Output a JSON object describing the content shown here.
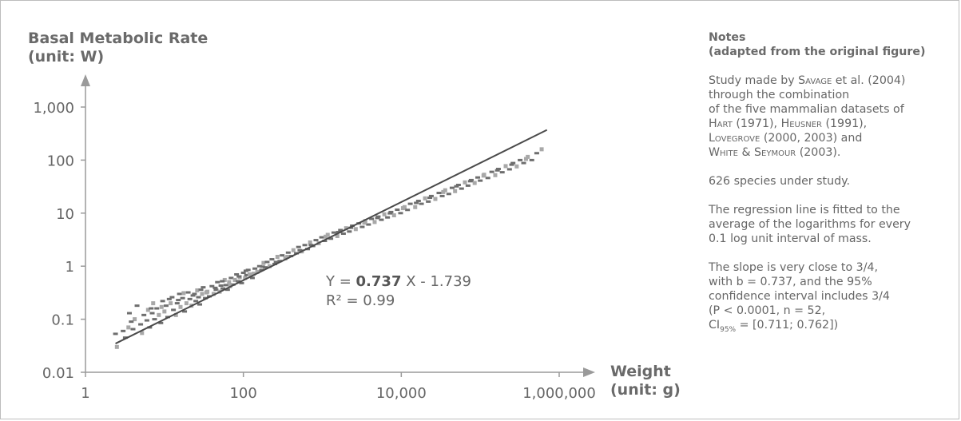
{
  "chart_data": {
    "type": "scatter",
    "title": "",
    "ylabel_line1": "Basal Metabolic Rate",
    "ylabel_line2": "(unit: W)",
    "xlabel_line1": "Weight",
    "xlabel_line2": "(unit: g)",
    "x_scale": "log",
    "y_scale": "log",
    "xlim": [
      1,
      1000000
    ],
    "ylim": [
      0.01,
      1000
    ],
    "x_ticks": [
      {
        "value": 1,
        "label": "1"
      },
      {
        "value": 100,
        "label": "100"
      },
      {
        "value": 10000,
        "label": "10,000"
      },
      {
        "value": 1000000,
        "label": "1,000,000"
      }
    ],
    "y_ticks": [
      {
        "value": 0.01,
        "label": "0.01"
      },
      {
        "value": 0.1,
        "label": "0.1"
      },
      {
        "value": 1,
        "label": "1"
      },
      {
        "value": 10,
        "label": "10"
      },
      {
        "value": 100,
        "label": "100"
      },
      {
        "value": 1000,
        "label": "1,000"
      }
    ],
    "grid": false,
    "regression": {
      "slope": 0.737,
      "intercept": -1.739,
      "x_range": [
        2.4,
        700000
      ],
      "equation_prefix": "Y = ",
      "equation_slope": "0.737",
      "equation_suffix": " X - 1.739",
      "r2_label": "R² = 0.99"
    },
    "points": [
      [
        2.4,
        0.053
      ],
      [
        2.5,
        0.03
      ],
      [
        3,
        0.06
      ],
      [
        3.2,
        0.045
      ],
      [
        3.5,
        0.07
      ],
      [
        3.6,
        0.13
      ],
      [
        4,
        0.065
      ],
      [
        4.2,
        0.1
      ],
      [
        4.5,
        0.18
      ],
      [
        5,
        0.08
      ],
      [
        5.2,
        0.055
      ],
      [
        5.5,
        0.12
      ],
      [
        6,
        0.095
      ],
      [
        6.2,
        0.15
      ],
      [
        6.5,
        0.07
      ],
      [
        7,
        0.13
      ],
      [
        7.2,
        0.2
      ],
      [
        7.5,
        0.1
      ],
      [
        8,
        0.16
      ],
      [
        8.5,
        0.12
      ],
      [
        9,
        0.085
      ],
      [
        9.5,
        0.22
      ],
      [
        10,
        0.14
      ],
      [
        10.5,
        0.18
      ],
      [
        11,
        0.11
      ],
      [
        12,
        0.2
      ],
      [
        12.5,
        0.26
      ],
      [
        13,
        0.15
      ],
      [
        14,
        0.12
      ],
      [
        15,
        0.23
      ],
      [
        15.5,
        0.3
      ],
      [
        16,
        0.17
      ],
      [
        17,
        0.25
      ],
      [
        18,
        0.14
      ],
      [
        19,
        0.2
      ],
      [
        20,
        0.32
      ],
      [
        21,
        0.24
      ],
      [
        22,
        0.18
      ],
      [
        23,
        0.28
      ],
      [
        25,
        0.22
      ],
      [
        26,
        0.35
      ],
      [
        27,
        0.26
      ],
      [
        28,
        0.19
      ],
      [
        30,
        0.3
      ],
      [
        31,
        0.4
      ],
      [
        33,
        0.25
      ],
      [
        35,
        0.33
      ],
      [
        37,
        0.27
      ],
      [
        40,
        0.42
      ],
      [
        42,
        0.3
      ],
      [
        45,
        0.36
      ],
      [
        47,
        0.5
      ],
      [
        50,
        0.33
      ],
      [
        52,
        0.43
      ],
      [
        55,
        0.38
      ],
      [
        58,
        0.55
      ],
      [
        60,
        0.44
      ],
      [
        63,
        0.36
      ],
      [
        66,
        0.5
      ],
      [
        70,
        0.6
      ],
      [
        74,
        0.45
      ],
      [
        78,
        0.55
      ],
      [
        82,
        0.7
      ],
      [
        86,
        0.52
      ],
      [
        90,
        0.62
      ],
      [
        95,
        0.48
      ],
      [
        100,
        0.75
      ],
      [
        105,
        0.6
      ],
      [
        110,
        0.68
      ],
      [
        115,
        0.85
      ],
      [
        120,
        0.7
      ],
      [
        130,
        0.6
      ],
      [
        140,
        0.9
      ],
      [
        150,
        0.78
      ],
      [
        160,
        1.0
      ],
      [
        170,
        0.85
      ],
      [
        180,
        1.15
      ],
      [
        190,
        0.95
      ],
      [
        200,
        1.2
      ],
      [
        215,
        1.0
      ],
      [
        230,
        1.35
      ],
      [
        250,
        1.1
      ],
      [
        270,
        1.5
      ],
      [
        290,
        1.25
      ],
      [
        310,
        1.6
      ],
      [
        340,
        1.4
      ],
      [
        370,
        1.8
      ],
      [
        400,
        1.55
      ],
      [
        430,
        2.0
      ],
      [
        470,
        1.75
      ],
      [
        500,
        2.3
      ],
      [
        550,
        1.9
      ],
      [
        600,
        2.5
      ],
      [
        650,
        2.1
      ],
      [
        700,
        2.8
      ],
      [
        760,
        2.4
      ],
      [
        830,
        3.1
      ],
      [
        900,
        2.7
      ],
      [
        980,
        3.5
      ],
      [
        1070,
        3.0
      ],
      [
        1170,
        3.9
      ],
      [
        1280,
        3.3
      ],
      [
        1400,
        4.3
      ],
      [
        1550,
        3.7
      ],
      [
        1700,
        4.8
      ],
      [
        1850,
        4.1
      ],
      [
        2000,
        5.2
      ],
      [
        2200,
        4.5
      ],
      [
        2400,
        5.8
      ],
      [
        2650,
        5.0
      ],
      [
        2900,
        6.4
      ],
      [
        3200,
        5.5
      ],
      [
        3500,
        7.1
      ],
      [
        3850,
        6.1
      ],
      [
        4200,
        7.8
      ],
      [
        4600,
        6.8
      ],
      [
        5100,
        8.6
      ],
      [
        5600,
        7.5
      ],
      [
        6100,
        9.5
      ],
      [
        6700,
        8.3
      ],
      [
        7400,
        10.5
      ],
      [
        8100,
        9.1
      ],
      [
        8900,
        11.6
      ],
      [
        9800,
        10
      ],
      [
        11000,
        13
      ],
      [
        12000,
        11.5
      ],
      [
        13000,
        15
      ],
      [
        15000,
        13
      ],
      [
        16500,
        17
      ],
      [
        18000,
        15
      ],
      [
        20000,
        19
      ],
      [
        22000,
        16.5
      ],
      [
        24000,
        21
      ],
      [
        27000,
        18.5
      ],
      [
        30000,
        24
      ],
      [
        33000,
        21
      ],
      [
        36000,
        27
      ],
      [
        40000,
        23
      ],
      [
        44000,
        30
      ],
      [
        48000,
        26
      ],
      [
        53000,
        34
      ],
      [
        58000,
        29
      ],
      [
        64000,
        38
      ],
      [
        70000,
        33
      ],
      [
        77000,
        42
      ],
      [
        85000,
        37
      ],
      [
        93000,
        47
      ],
      [
        100000,
        41
      ],
      [
        112000,
        53
      ],
      [
        125000,
        46
      ],
      [
        140000,
        60
      ],
      [
        155000,
        52
      ],
      [
        170000,
        68
      ],
      [
        190000,
        59
      ],
      [
        210000,
        77
      ],
      [
        235000,
        67
      ],
      [
        260000,
        88
      ],
      [
        290000,
        76
      ],
      [
        320000,
        100
      ],
      [
        355000,
        88
      ],
      [
        400000,
        115
      ],
      [
        450000,
        100
      ],
      [
        520000,
        135
      ],
      [
        600000,
        160
      ],
      [
        3.8,
        0.09
      ],
      [
        6.8,
        0.16
      ],
      [
        9.2,
        0.17
      ],
      [
        11.5,
        0.24
      ],
      [
        14.5,
        0.2
      ],
      [
        17.5,
        0.31
      ],
      [
        24,
        0.3
      ],
      [
        29,
        0.36
      ],
      [
        34,
        0.32
      ],
      [
        44,
        0.39
      ],
      [
        54,
        0.52
      ],
      [
        68,
        0.42
      ],
      [
        88,
        0.64
      ],
      [
        108,
        0.82
      ],
      [
        135,
        0.72
      ],
      [
        175,
        0.98
      ],
      [
        260,
        1.2
      ],
      [
        360,
        1.5
      ],
      [
        520,
        2.0
      ],
      [
        720,
        2.5
      ],
      [
        1100,
        3.6
      ],
      [
        1600,
        4.4
      ],
      [
        2300,
        5.3
      ],
      [
        3400,
        6.6
      ],
      [
        5000,
        8.1
      ],
      [
        7200,
        9.9
      ],
      [
        10500,
        12.4
      ],
      [
        15500,
        15.6
      ],
      [
        23000,
        19.5
      ],
      [
        34000,
        25
      ],
      [
        50000,
        32
      ],
      [
        75000,
        40
      ],
      [
        110000,
        51
      ],
      [
        165000,
        64
      ],
      [
        250000,
        82
      ],
      [
        380000,
        105
      ]
    ]
  },
  "notes": {
    "title_line1": "Notes",
    "title_line2": "(adapted from the original figure)",
    "p1_a": "Study made by ",
    "p1_name1": "Savage",
    "p1_b": " et al. (2004)",
    "p1_c": "through the combination",
    "p1_d": "of the five mammalian datasets of",
    "p1_name2": "Hart",
    "p1_e": " (1971), ",
    "p1_name3": "Heusner",
    "p1_f": " (1991),",
    "p1_name4": "Lovegrove",
    "p1_g": " (2000, 2003) and",
    "p1_name5": "White",
    "p1_h": " & ",
    "p1_name6": "Seymour",
    "p1_i": " (2003).",
    "p2": "626 species under study.",
    "p3_line1": "The regression line is fitted to the",
    "p3_line2": "average of the logarithms for every",
    "p3_line3": "0.1 log unit interval of mass.",
    "p4_line1": "The slope is very close to 3/4,",
    "p4_line2": "with b = 0.737, and the 95%",
    "p4_line3": "confidence interval includes 3/4",
    "p4_line4": "(P < 0.0001, n = 52,",
    "p4_ci": "CI",
    "p4_ci_sub": "95%",
    "p4_line5": " = [0.711; 0.762])"
  },
  "colors": {
    "axis": "#9a9a9a",
    "point_dark": "#6e6e6e",
    "point_light": "#a8a8a8",
    "line": "#4a4a4a",
    "text": "#666666"
  }
}
